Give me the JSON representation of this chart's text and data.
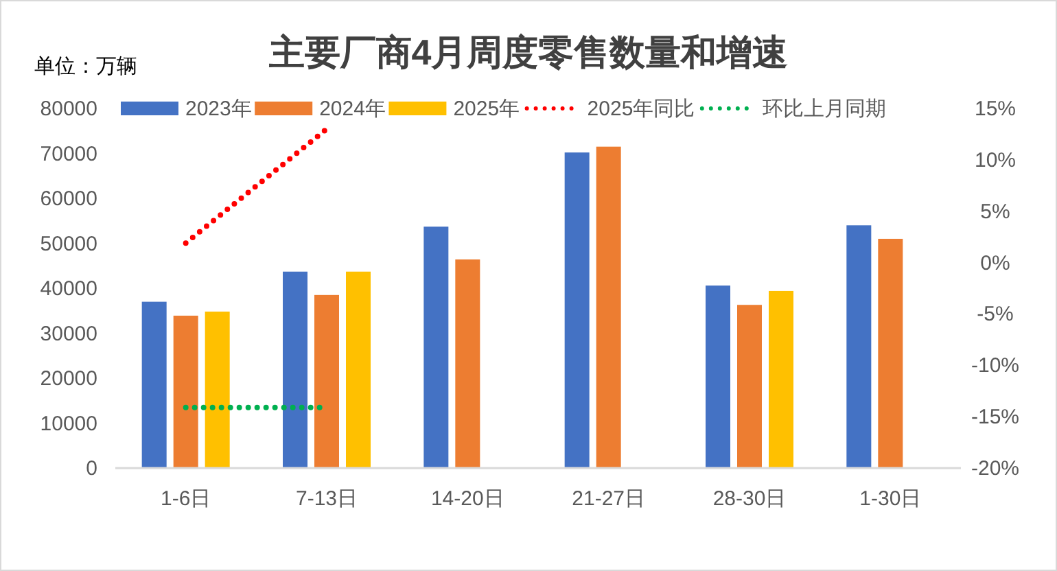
{
  "chart_data": {
    "type": "bar",
    "title": "主要厂商4月周度零售数量和增速",
    "annotations": [
      "单位：万辆"
    ],
    "categories": [
      "1-6日",
      "7-13日",
      "14-20日",
      "21-27日",
      "28-30日",
      "1-30日"
    ],
    "series": [
      {
        "name": "2023年",
        "color": "#4472c4",
        "values": [
          37000,
          43700,
          53700,
          70200,
          40600,
          54000
        ]
      },
      {
        "name": "2024年",
        "color": "#ed7d31",
        "values": [
          33900,
          38500,
          46400,
          71500,
          36300,
          51000
        ]
      },
      {
        "name": "2025年",
        "color": "#ffc000",
        "values": [
          34800,
          43700,
          null,
          null,
          39400,
          null
        ]
      },
      {
        "name": "2025年同比",
        "type": "line",
        "axis": "y2",
        "color": "#ff0000",
        "line_style": "dotted",
        "marker": "none",
        "values": [
          1.9,
          13.0,
          null,
          null,
          null,
          null
        ]
      },
      {
        "name": "环比上月同期",
        "type": "line",
        "axis": "y2",
        "color": "#00b050",
        "line_style": "dotted",
        "marker": "none",
        "values": [
          -14.1,
          -14.1,
          null,
          null,
          null,
          null
        ]
      }
    ],
    "ylim": [
      0,
      80000
    ],
    "yticks": [
      0,
      10000,
      20000,
      30000,
      40000,
      50000,
      60000,
      70000,
      80000
    ],
    "y2lim": [
      -20,
      15
    ],
    "y2ticks": [
      {
        "value": -20,
        "label": "-20%"
      },
      {
        "value": -15,
        "label": "-15%"
      },
      {
        "value": -10,
        "label": "-10%"
      },
      {
        "value": -5,
        "label": "-5%"
      },
      {
        "value": 0,
        "label": "0%"
      },
      {
        "value": 5,
        "label": "5%"
      },
      {
        "value": 10,
        "label": "10%"
      },
      {
        "value": 15,
        "label": "15%"
      }
    ],
    "legend": "top"
  }
}
